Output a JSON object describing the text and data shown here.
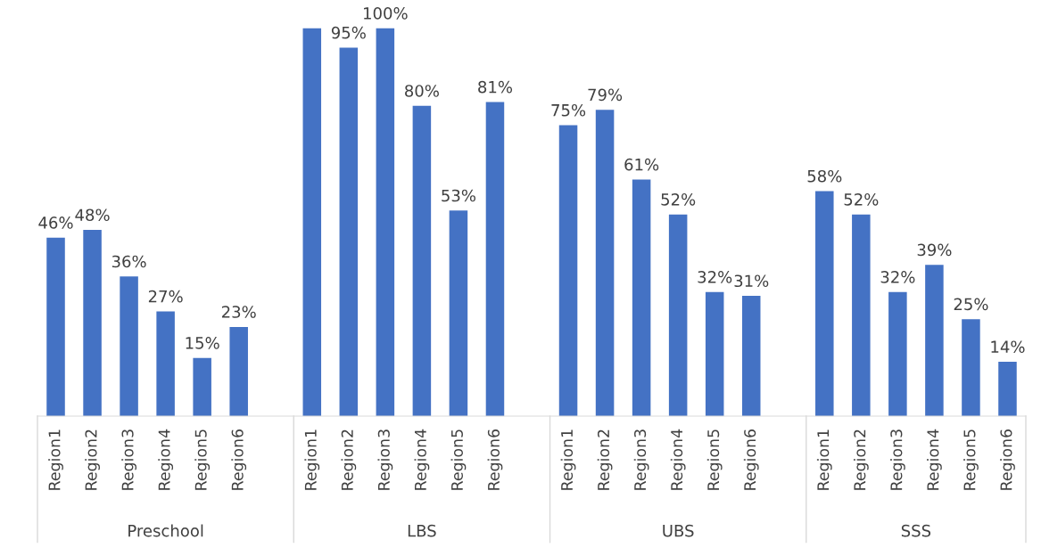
{
  "chart_data": {
    "type": "bar",
    "categories": [
      "Region1",
      "Region2",
      "Region3",
      "Region4",
      "Region5",
      "Region6",
      null,
      "Region1",
      "Region2",
      "Region3",
      "Region4",
      "Region5",
      "Region6",
      null,
      "Region1",
      "Region2",
      "Region3",
      "Region4",
      "Region5",
      "Region6",
      null,
      "Region1",
      "Region2",
      "Region3",
      "Region4",
      "Region5",
      "Region6"
    ],
    "values": [
      46,
      48,
      36,
      27,
      15,
      23,
      null,
      100,
      95,
      100,
      80,
      53,
      81,
      null,
      75,
      79,
      61,
      52,
      32,
      31,
      null,
      58,
      52,
      32,
      39,
      25,
      14
    ],
    "value_labels": [
      "46%",
      "48%",
      "36%",
      "27%",
      "15%",
      "23%",
      null,
      null,
      "95%",
      "100%",
      "80%",
      "53%",
      "81%",
      null,
      "75%",
      "79%",
      "61%",
      "52%",
      "32%",
      "31%",
      null,
      "58%",
      "52%",
      "32%",
      "39%",
      "25%",
      "14%"
    ],
    "color": "#4472c4",
    "annotations": [
      "Preschool",
      "LBS",
      "UBS",
      "SSS"
    ],
    "grid": false,
    "legend": false
  }
}
